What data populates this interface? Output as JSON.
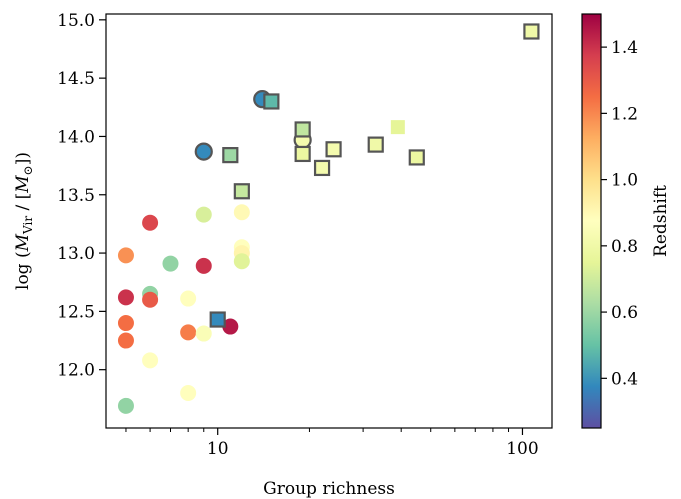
{
  "chart_data": {
    "type": "scatter",
    "xlabel": "Group richness",
    "ylabel": "log (M_Vir / [M_⊙])",
    "x_scale": "log",
    "xlim": [
      4.3,
      125
    ],
    "ylim": [
      11.5,
      15.05
    ],
    "x_ticks": [
      {
        "value": 10,
        "label": "10"
      },
      {
        "value": 100,
        "label": "100"
      }
    ],
    "y_ticks": [
      {
        "value": 12.0,
        "label": "12.0"
      },
      {
        "value": 12.5,
        "label": "12.5"
      },
      {
        "value": 13.0,
        "label": "13.0"
      },
      {
        "value": 13.5,
        "label": "13.5"
      },
      {
        "value": 14.0,
        "label": "14.0"
      },
      {
        "value": 14.5,
        "label": "14.5"
      },
      {
        "value": 15.0,
        "label": "15.0"
      }
    ],
    "colorbar": {
      "label": "Redshift",
      "colormap": "Spectral_r",
      "range": [
        0.25,
        1.5
      ],
      "ticks": [
        {
          "value": 0.4,
          "label": "0.4"
        },
        {
          "value": 0.6,
          "label": "0.6"
        },
        {
          "value": 0.8,
          "label": "0.8"
        },
        {
          "value": 1.0,
          "label": "1.0"
        },
        {
          "value": 1.2,
          "label": "1.2"
        },
        {
          "value": 1.4,
          "label": "1.4"
        }
      ]
    },
    "points": [
      {
        "x": 5,
        "y": 12.98,
        "z": 1.18,
        "marker": "circle"
      },
      {
        "x": 5,
        "y": 12.62,
        "z": 1.4,
        "marker": "circle"
      },
      {
        "x": 5,
        "y": 12.4,
        "z": 1.25,
        "marker": "circle"
      },
      {
        "x": 5,
        "y": 12.25,
        "z": 1.25,
        "marker": "circle"
      },
      {
        "x": 5,
        "y": 11.69,
        "z": 0.58,
        "marker": "circle"
      },
      {
        "x": 6,
        "y": 13.26,
        "z": 1.35,
        "marker": "circle"
      },
      {
        "x": 6,
        "y": 12.65,
        "z": 0.58,
        "marker": "circle"
      },
      {
        "x": 6,
        "y": 12.6,
        "z": 1.3,
        "marker": "circle"
      },
      {
        "x": 6,
        "y": 12.08,
        "z": 0.88,
        "marker": "circle"
      },
      {
        "x": 7,
        "y": 12.91,
        "z": 0.58,
        "marker": "circle"
      },
      {
        "x": 8,
        "y": 12.61,
        "z": 0.88,
        "marker": "circle"
      },
      {
        "x": 8,
        "y": 12.32,
        "z": 1.22,
        "marker": "circle"
      },
      {
        "x": 8,
        "y": 11.8,
        "z": 0.88,
        "marker": "circle"
      },
      {
        "x": 9,
        "y": 13.33,
        "z": 0.72,
        "marker": "circle"
      },
      {
        "x": 9,
        "y": 12.89,
        "z": 1.4,
        "marker": "circle"
      },
      {
        "x": 9,
        "y": 12.31,
        "z": 0.85,
        "marker": "circle"
      },
      {
        "x": 11,
        "y": 12.37,
        "z": 1.45,
        "marker": "circle"
      },
      {
        "x": 12,
        "y": 13.35,
        "z": 0.9,
        "marker": "circle"
      },
      {
        "x": 12,
        "y": 13.05,
        "z": 0.88,
        "marker": "circle"
      },
      {
        "x": 12,
        "y": 13.0,
        "z": 0.92,
        "marker": "circle"
      },
      {
        "x": 12,
        "y": 12.93,
        "z": 0.74,
        "marker": "circle"
      },
      {
        "x": 9,
        "y": 13.87,
        "z": 0.38,
        "marker": "circle",
        "edge": true
      },
      {
        "x": 14,
        "y": 14.32,
        "z": 0.38,
        "marker": "circle",
        "edge": true
      },
      {
        "x": 19,
        "y": 13.97,
        "z": 0.82,
        "marker": "circle",
        "edge": true
      },
      {
        "x": 10,
        "y": 12.43,
        "z": 0.38,
        "marker": "square",
        "edge": true
      },
      {
        "x": 11,
        "y": 13.84,
        "z": 0.6,
        "marker": "square",
        "edge": true
      },
      {
        "x": 12,
        "y": 13.53,
        "z": 0.68,
        "marker": "square",
        "edge": true
      },
      {
        "x": 15,
        "y": 14.3,
        "z": 0.48,
        "marker": "square",
        "edge": true
      },
      {
        "x": 19,
        "y": 14.06,
        "z": 0.67,
        "marker": "square",
        "edge": true
      },
      {
        "x": 19,
        "y": 13.85,
        "z": 0.78,
        "marker": "square",
        "edge": true
      },
      {
        "x": 22,
        "y": 13.73,
        "z": 0.82,
        "marker": "square",
        "edge": true
      },
      {
        "x": 24,
        "y": 13.89,
        "z": 0.82,
        "marker": "square",
        "edge": true
      },
      {
        "x": 33,
        "y": 13.93,
        "z": 0.8,
        "marker": "square",
        "edge": true
      },
      {
        "x": 39,
        "y": 14.08,
        "z": 0.75,
        "marker": "square",
        "edge": false
      },
      {
        "x": 45,
        "y": 13.82,
        "z": 0.78,
        "marker": "square",
        "edge": true
      },
      {
        "x": 107,
        "y": 14.9,
        "z": 0.8,
        "marker": "square",
        "edge": true
      }
    ]
  }
}
